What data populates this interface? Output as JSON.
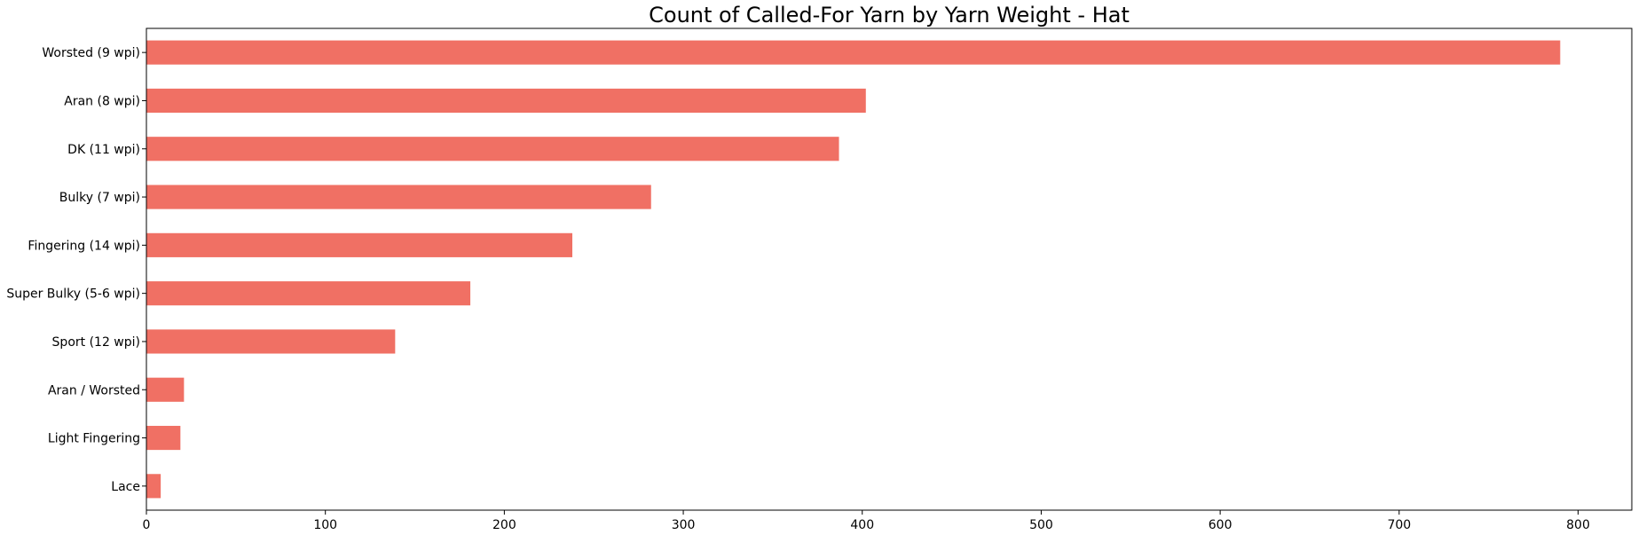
{
  "chart_data": {
    "type": "bar",
    "orientation": "horizontal",
    "title": "Count of Called-For Yarn by Yarn Weight - Hat",
    "xlabel": "",
    "ylabel": "",
    "categories": [
      "Worsted (9 wpi)",
      "Aran (8 wpi)",
      "DK (11 wpi)",
      "Bulky (7 wpi)",
      "Fingering (14 wpi)",
      "Super Bulky (5-6 wpi)",
      "Sport (12 wpi)",
      "Aran / Worsted",
      "Light Fingering",
      "Lace"
    ],
    "values": [
      790,
      402,
      387,
      282,
      238,
      181,
      139,
      21,
      19,
      8
    ],
    "xlim": [
      0,
      830
    ],
    "xticks": [
      0,
      100,
      200,
      300,
      400,
      500,
      600,
      700,
      800
    ],
    "grid": false,
    "bar_color": "#f07064"
  }
}
